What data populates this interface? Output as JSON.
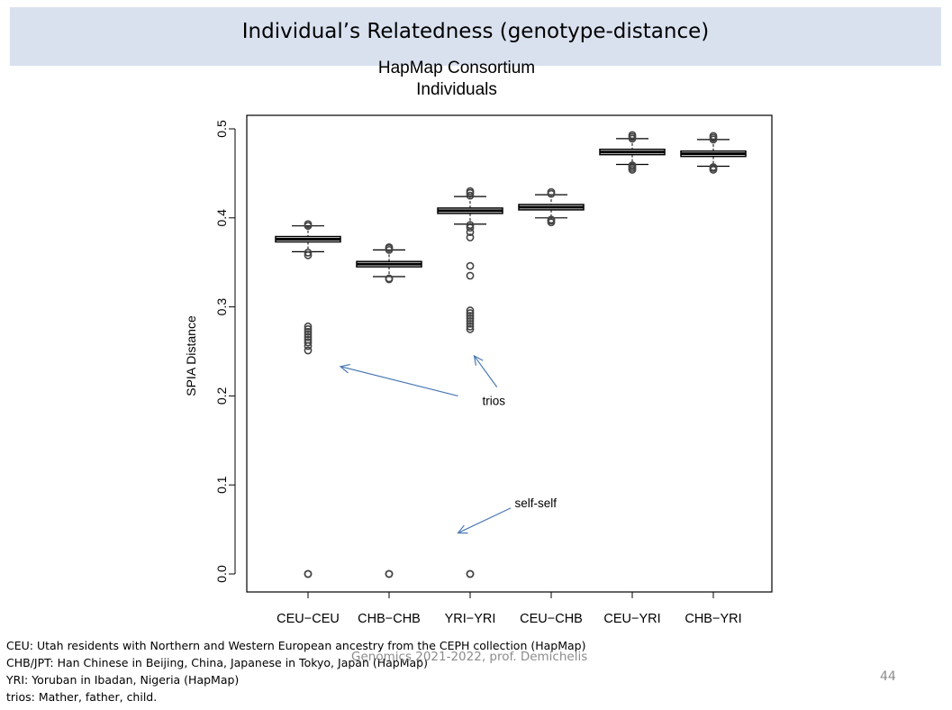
{
  "slide": {
    "title": "Individual’s Relatedness (genotype-distance)",
    "footer": "Genomics 2021-2022, prof. Demichelis",
    "page_number": "44",
    "notes": [
      "CEU: Utah residents with Northern and Western European ancestry from the CEPH collection (HapMap)",
      "CHB/JPT: Han Chinese in Beijing, China, Japanese in Tokyo, Japan (HapMap)",
      "YRI: Yoruban in Ibadan, Nigeria (HapMap)",
      "trios: Mather, father, child."
    ],
    "colors": {
      "title_band": "#d9e1ef",
      "arrow": "#4a78b5",
      "footer": "#8c8c8c"
    }
  },
  "chart_data": {
    "type": "box",
    "title": "HapMap Consortium\nIndividuals",
    "title_lines": [
      "HapMap Consortium",
      "Individuals"
    ],
    "xlabel": "",
    "ylabel": "SPIA Distance",
    "ylim": [
      0,
      0.5
    ],
    "yticks": [
      0.0,
      0.1,
      0.2,
      0.3,
      0.4,
      0.5
    ],
    "ytick_labels": [
      "0.0",
      "0.1",
      "0.2",
      "0.3",
      "0.4",
      "0.5"
    ],
    "categories": [
      "CEU−CEU",
      "CHB−CHB",
      "YRI−YRI",
      "CEU−CHB",
      "CEU−YRI",
      "CHB−YRI"
    ],
    "boxes": [
      {
        "q1": 0.373,
        "median": 0.376,
        "q3": 0.379,
        "whisker_low": 0.362,
        "whisker_high": 0.391,
        "outliers": [
          0.0,
          0.0,
          0.251,
          0.256,
          0.26,
          0.263,
          0.266,
          0.269,
          0.272,
          0.275,
          0.278,
          0.358,
          0.361,
          0.391,
          0.393
        ]
      },
      {
        "q1": 0.345,
        "median": 0.348,
        "q3": 0.351,
        "whisker_low": 0.334,
        "whisker_high": 0.364,
        "outliers": [
          0.0,
          0.0,
          0.331,
          0.332,
          0.364,
          0.366,
          0.367
        ]
      },
      {
        "q1": 0.405,
        "median": 0.408,
        "q3": 0.411,
        "whisker_low": 0.393,
        "whisker_high": 0.424,
        "outliers": [
          0.0,
          0.0,
          0.275,
          0.278,
          0.281,
          0.284,
          0.287,
          0.29,
          0.293,
          0.296,
          0.335,
          0.346,
          0.378,
          0.384,
          0.389,
          0.392,
          0.425,
          0.428,
          0.43
        ]
      },
      {
        "q1": 0.409,
        "median": 0.412,
        "q3": 0.415,
        "whisker_low": 0.4,
        "whisker_high": 0.426,
        "outliers": [
          0.395,
          0.397,
          0.398,
          0.427,
          0.429
        ]
      },
      {
        "q1": 0.471,
        "median": 0.474,
        "q3": 0.477,
        "whisker_low": 0.46,
        "whisker_high": 0.489,
        "outliers": [
          0.454,
          0.456,
          0.458,
          0.459,
          0.489,
          0.491,
          0.493
        ]
      },
      {
        "q1": 0.469,
        "median": 0.472,
        "q3": 0.475,
        "whisker_low": 0.458,
        "whisker_high": 0.488,
        "outliers": [
          0.454,
          0.456,
          0.457,
          0.488,
          0.49,
          0.492
        ]
      }
    ],
    "annotations": [
      {
        "text": "trios",
        "x": 3.15,
        "y": 0.19,
        "arrows": [
          {
            "from": [
              2.85,
              0.2
            ],
            "to": [
              1.4,
              0.233
            ]
          },
          {
            "from": [
              3.33,
              0.21
            ],
            "to": [
              3.05,
              0.245
            ]
          }
        ]
      },
      {
        "text": "self-self",
        "x": 3.55,
        "y": 0.075,
        "arrows": [
          {
            "from": [
              3.5,
              0.074
            ],
            "to": [
              2.85,
              0.046
            ]
          }
        ]
      }
    ],
    "grid": false,
    "legend": "none"
  }
}
